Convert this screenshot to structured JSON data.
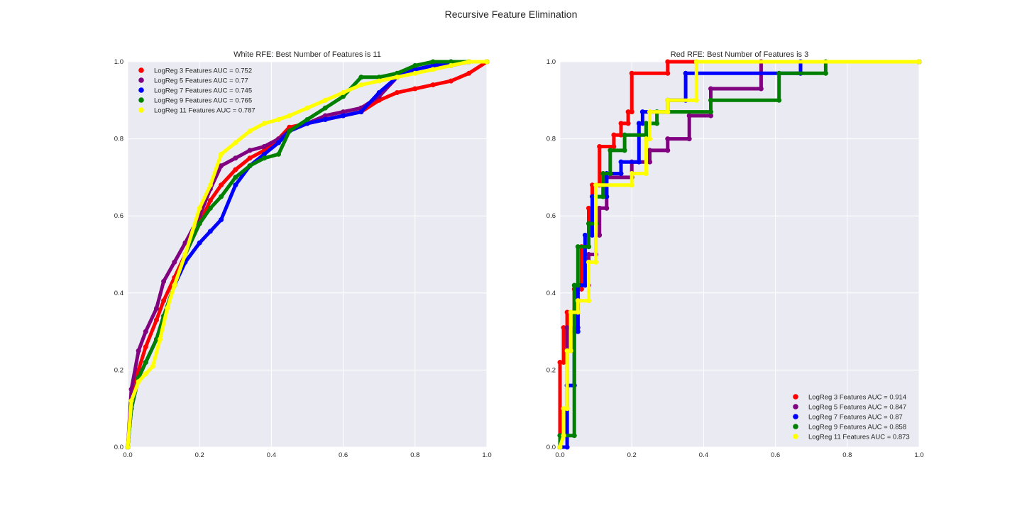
{
  "figure": {
    "title": "Recursive Feature Elimination",
    "background": "#ffffff"
  },
  "colors": {
    "axes_bg": "#eaeaf2",
    "grid": "#ffffff",
    "text": "#262626"
  },
  "chart_data": [
    {
      "type": "line",
      "title": "White RFE: Best Number of Features is 11",
      "xlabel": "",
      "ylabel": "",
      "xlim": [
        0,
        1
      ],
      "ylim": [
        0,
        1
      ],
      "xticks": [
        "0.0",
        "0.2",
        "0.4",
        "0.6",
        "0.8",
        "1.0"
      ],
      "yticks": [
        "0.0",
        "0.2",
        "0.4",
        "0.6",
        "0.8",
        "1.0"
      ],
      "grid": true,
      "legend_position": "upper-left",
      "series": [
        {
          "name": "LogReg 3 Features AUC = 0.752",
          "color": "#ff0000",
          "x": [
            0,
            0.01,
            0.03,
            0.05,
            0.08,
            0.1,
            0.13,
            0.16,
            0.2,
            0.23,
            0.26,
            0.3,
            0.34,
            0.38,
            0.42,
            0.45,
            0.5,
            0.55,
            0.6,
            0.65,
            0.7,
            0.75,
            0.8,
            0.85,
            0.9,
            0.95,
            1.0
          ],
          "y": [
            0,
            0.12,
            0.2,
            0.26,
            0.33,
            0.38,
            0.44,
            0.5,
            0.58,
            0.64,
            0.68,
            0.72,
            0.75,
            0.77,
            0.8,
            0.83,
            0.84,
            0.85,
            0.86,
            0.87,
            0.9,
            0.92,
            0.93,
            0.94,
            0.95,
            0.97,
            1.0
          ]
        },
        {
          "name": "LogReg 5 Features AUC = 0.77",
          "color": "#800080",
          "x": [
            0,
            0.01,
            0.03,
            0.05,
            0.08,
            0.1,
            0.13,
            0.16,
            0.2,
            0.23,
            0.26,
            0.3,
            0.34,
            0.38,
            0.42,
            0.45,
            0.5,
            0.55,
            0.6,
            0.65,
            0.7,
            0.75,
            0.8,
            0.85,
            0.9,
            0.95,
            1.0
          ],
          "y": [
            0,
            0.15,
            0.25,
            0.3,
            0.36,
            0.43,
            0.48,
            0.53,
            0.6,
            0.67,
            0.73,
            0.75,
            0.77,
            0.78,
            0.8,
            0.82,
            0.84,
            0.86,
            0.87,
            0.88,
            0.91,
            0.96,
            0.98,
            0.99,
            0.99,
            1.0,
            1.0
          ]
        },
        {
          "name": "LogReg 7 Features AUC = 0.745",
          "color": "#0000ff",
          "x": [
            0,
            0.01,
            0.03,
            0.05,
            0.08,
            0.1,
            0.13,
            0.16,
            0.2,
            0.23,
            0.26,
            0.3,
            0.34,
            0.38,
            0.42,
            0.45,
            0.5,
            0.55,
            0.6,
            0.65,
            0.7,
            0.75,
            0.8,
            0.85,
            0.9,
            0.95,
            1.0
          ],
          "y": [
            0,
            0.1,
            0.18,
            0.22,
            0.28,
            0.34,
            0.42,
            0.48,
            0.53,
            0.56,
            0.59,
            0.68,
            0.73,
            0.76,
            0.79,
            0.82,
            0.84,
            0.85,
            0.86,
            0.87,
            0.92,
            0.96,
            0.98,
            0.99,
            1.0,
            1.0,
            1.0
          ]
        },
        {
          "name": "LogReg 9 Features AUC = 0.765",
          "color": "#008000",
          "x": [
            0,
            0.01,
            0.03,
            0.05,
            0.08,
            0.1,
            0.13,
            0.16,
            0.2,
            0.23,
            0.26,
            0.3,
            0.34,
            0.38,
            0.42,
            0.45,
            0.5,
            0.55,
            0.6,
            0.65,
            0.7,
            0.75,
            0.8,
            0.85,
            0.9,
            0.95,
            1.0
          ],
          "y": [
            0,
            0.1,
            0.18,
            0.22,
            0.28,
            0.34,
            0.42,
            0.5,
            0.58,
            0.62,
            0.65,
            0.7,
            0.73,
            0.75,
            0.76,
            0.82,
            0.85,
            0.88,
            0.91,
            0.96,
            0.96,
            0.97,
            0.99,
            1.0,
            1.0,
            1.0,
            1.0
          ]
        },
        {
          "name": "LogReg 11 Features AUC = 0.787",
          "color": "#ffff00",
          "x": [
            0,
            0.01,
            0.03,
            0.05,
            0.07,
            0.09,
            0.11,
            0.13,
            0.16,
            0.2,
            0.23,
            0.26,
            0.3,
            0.34,
            0.38,
            0.42,
            0.45,
            0.5,
            0.55,
            0.6,
            0.65,
            0.7,
            0.75,
            0.8,
            0.85,
            0.9,
            0.95,
            1.0
          ],
          "y": [
            0,
            0.12,
            0.17,
            0.19,
            0.21,
            0.28,
            0.36,
            0.42,
            0.5,
            0.62,
            0.68,
            0.76,
            0.79,
            0.82,
            0.84,
            0.85,
            0.86,
            0.88,
            0.9,
            0.92,
            0.94,
            0.95,
            0.96,
            0.97,
            0.98,
            0.99,
            1.0,
            1.0
          ]
        }
      ]
    },
    {
      "type": "line",
      "title": "Red RFE: Best Number of Features is 3",
      "xlabel": "",
      "ylabel": "",
      "xlim": [
        0,
        1
      ],
      "ylim": [
        0,
        1
      ],
      "xticks": [
        "0.0",
        "0.2",
        "0.4",
        "0.6",
        "0.8",
        "1.0"
      ],
      "yticks": [
        "0.0",
        "0.2",
        "0.4",
        "0.6",
        "0.8",
        "1.0"
      ],
      "grid": true,
      "legend_position": "lower-right",
      "series": [
        {
          "name": "LogReg 3 Features AUC = 0.914",
          "color": "#ff0000",
          "x": [
            0,
            0,
            0.01,
            0.01,
            0.02,
            0.02,
            0.04,
            0.04,
            0.06,
            0.06,
            0.08,
            0.08,
            0.09,
            0.09,
            0.11,
            0.11,
            0.15,
            0.15,
            0.17,
            0.17,
            0.19,
            0.19,
            0.2,
            0.2,
            0.3,
            0.3,
            1.0
          ],
          "y": [
            0,
            0.22,
            0.22,
            0.31,
            0.31,
            0.35,
            0.35,
            0.41,
            0.41,
            0.52,
            0.52,
            0.62,
            0.62,
            0.68,
            0.68,
            0.78,
            0.78,
            0.81,
            0.81,
            0.84,
            0.84,
            0.87,
            0.87,
            0.97,
            0.97,
            1.0,
            1.0
          ]
        },
        {
          "name": "LogReg 5 Features AUC = 0.847",
          "color": "#800080",
          "x": [
            0,
            0,
            0.02,
            0.02,
            0.05,
            0.05,
            0.08,
            0.08,
            0.1,
            0.1,
            0.11,
            0.11,
            0.13,
            0.13,
            0.2,
            0.2,
            0.25,
            0.25,
            0.3,
            0.3,
            0.36,
            0.36,
            0.42,
            0.42,
            0.56,
            0.56,
            1.0
          ],
          "y": [
            0,
            0.03,
            0.03,
            0.31,
            0.31,
            0.42,
            0.42,
            0.5,
            0.5,
            0.55,
            0.55,
            0.62,
            0.62,
            0.7,
            0.7,
            0.74,
            0.74,
            0.77,
            0.77,
            0.8,
            0.8,
            0.86,
            0.86,
            0.93,
            0.93,
            1.0,
            1.0
          ]
        },
        {
          "name": "LogReg 7 Features AUC = 0.87",
          "color": "#0000ff",
          "x": [
            0,
            0.02,
            0.02,
            0.04,
            0.04,
            0.05,
            0.05,
            0.07,
            0.07,
            0.09,
            0.09,
            0.13,
            0.13,
            0.17,
            0.17,
            0.22,
            0.22,
            0.23,
            0.23,
            0.3,
            0.3,
            0.35,
            0.35,
            0.67,
            0.67,
            1.0
          ],
          "y": [
            0,
            0.0,
            0.16,
            0.16,
            0.3,
            0.3,
            0.42,
            0.42,
            0.55,
            0.55,
            0.65,
            0.65,
            0.71,
            0.71,
            0.74,
            0.74,
            0.84,
            0.84,
            0.87,
            0.87,
            0.9,
            0.9,
            0.97,
            0.97,
            1.0,
            1.0
          ]
        },
        {
          "name": "LogReg 9 Features AUC = 0.858",
          "color": "#008000",
          "x": [
            0,
            0.0,
            0.0,
            0.04,
            0.04,
            0.05,
            0.05,
            0.08,
            0.08,
            0.1,
            0.1,
            0.12,
            0.12,
            0.14,
            0.14,
            0.18,
            0.18,
            0.24,
            0.24,
            0.27,
            0.27,
            0.42,
            0.42,
            0.61,
            0.61,
            0.74,
            0.74,
            1.0
          ],
          "y": [
            0,
            0.0,
            0.03,
            0.03,
            0.42,
            0.42,
            0.52,
            0.52,
            0.58,
            0.58,
            0.65,
            0.65,
            0.71,
            0.71,
            0.77,
            0.77,
            0.81,
            0.81,
            0.84,
            0.84,
            0.87,
            0.87,
            0.9,
            0.9,
            0.97,
            0.97,
            1.0,
            1.0
          ]
        },
        {
          "name": "LogReg 11 Features AUC = 0.873",
          "color": "#ffff00",
          "x": [
            0,
            0.01,
            0.01,
            0.02,
            0.02,
            0.03,
            0.03,
            0.05,
            0.05,
            0.08,
            0.08,
            0.1,
            0.1,
            0.2,
            0.2,
            0.24,
            0.24,
            0.25,
            0.25,
            0.3,
            0.3,
            0.38,
            0.38,
            1.0
          ],
          "y": [
            0,
            0.03,
            0.1,
            0.1,
            0.25,
            0.25,
            0.35,
            0.35,
            0.38,
            0.38,
            0.48,
            0.48,
            0.68,
            0.68,
            0.71,
            0.71,
            0.8,
            0.8,
            0.87,
            0.87,
            0.9,
            0.9,
            1.0,
            1.0
          ]
        }
      ]
    }
  ]
}
